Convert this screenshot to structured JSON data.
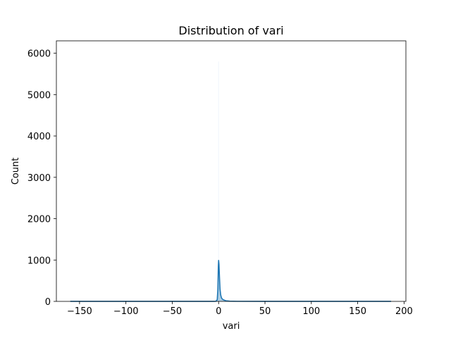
{
  "chart_data": {
    "type": "histogram",
    "title": "Distribution of vari",
    "xlabel": "vari",
    "ylabel": "Count",
    "xlim": [
      -175,
      202
    ],
    "ylim": [
      0,
      6300
    ],
    "xticks": [
      -150,
      -100,
      -50,
      0,
      50,
      100,
      150,
      200
    ],
    "xtick_labels": [
      "−150",
      "−100",
      "−50",
      "0",
      "50",
      "100",
      "150",
      "200"
    ],
    "yticks": [
      0,
      1000,
      2000,
      3000,
      4000,
      5000,
      6000
    ],
    "ytick_labels": [
      "0",
      "1000",
      "2000",
      "3000",
      "4000",
      "5000",
      "6000"
    ],
    "grid": false,
    "legend": "none",
    "data_range": [
      -159,
      186
    ],
    "bins": [
      {
        "x0": -0.5,
        "x1": 0.5,
        "count": 5800
      }
    ],
    "kde_curve": {
      "x": [
        -160,
        -50,
        -5,
        -3,
        -1.5,
        -0.8,
        -0.3,
        0,
        0.4,
        0.9,
        1.5,
        2.2,
        3,
        4,
        6,
        8,
        12,
        20,
        50,
        186
      ],
      "y": [
        1,
        1,
        1,
        4,
        40,
        300,
        850,
        990,
        900,
        600,
        300,
        160,
        90,
        55,
        30,
        15,
        5,
        2,
        1,
        1
      ]
    },
    "colors": {
      "bars": "#1f77b4",
      "line": "#1f77b4"
    }
  }
}
